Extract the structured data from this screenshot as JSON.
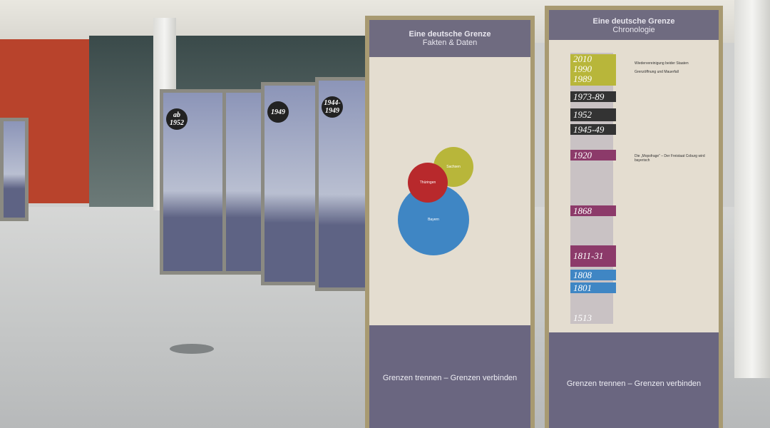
{
  "scene": {
    "description_colors": {
      "panel_header": "#6f6b80",
      "frame": "#a89a72",
      "olive": "#b8b63a",
      "red": "#b8292c",
      "blue": "#3f86c4"
    }
  },
  "small_panels": [
    {
      "year": "ab 1952"
    },
    {
      "year": ""
    },
    {
      "year": "1949"
    },
    {
      "year": "1944-1949"
    }
  ],
  "facts_panel": {
    "title": "Eine deutsche Grenze",
    "subtitle": "Fakten & Daten",
    "circles": [
      "Sachsen",
      "Thüringen",
      "Bayern"
    ],
    "slogan": "Grenzen trennen – Grenzen verbinden"
  },
  "chronology_panel": {
    "title": "Eine deutsche Grenze",
    "subtitle": "Chronologie",
    "years": [
      "2010",
      "1990",
      "1989",
      "1973-89",
      "1952",
      "1945-49",
      "1920",
      "1868",
      "1811-31",
      "1808",
      "1801",
      "1513"
    ],
    "events": [
      "Wiedervereinigung beider Staaten",
      "Grenzöffnung und Mauerfall",
      "Die „Mopsfrage“ – Der Freistaat Coburg wird bayerisch"
    ],
    "slogan": "Grenzen trennen – Grenzen verbinden"
  }
}
